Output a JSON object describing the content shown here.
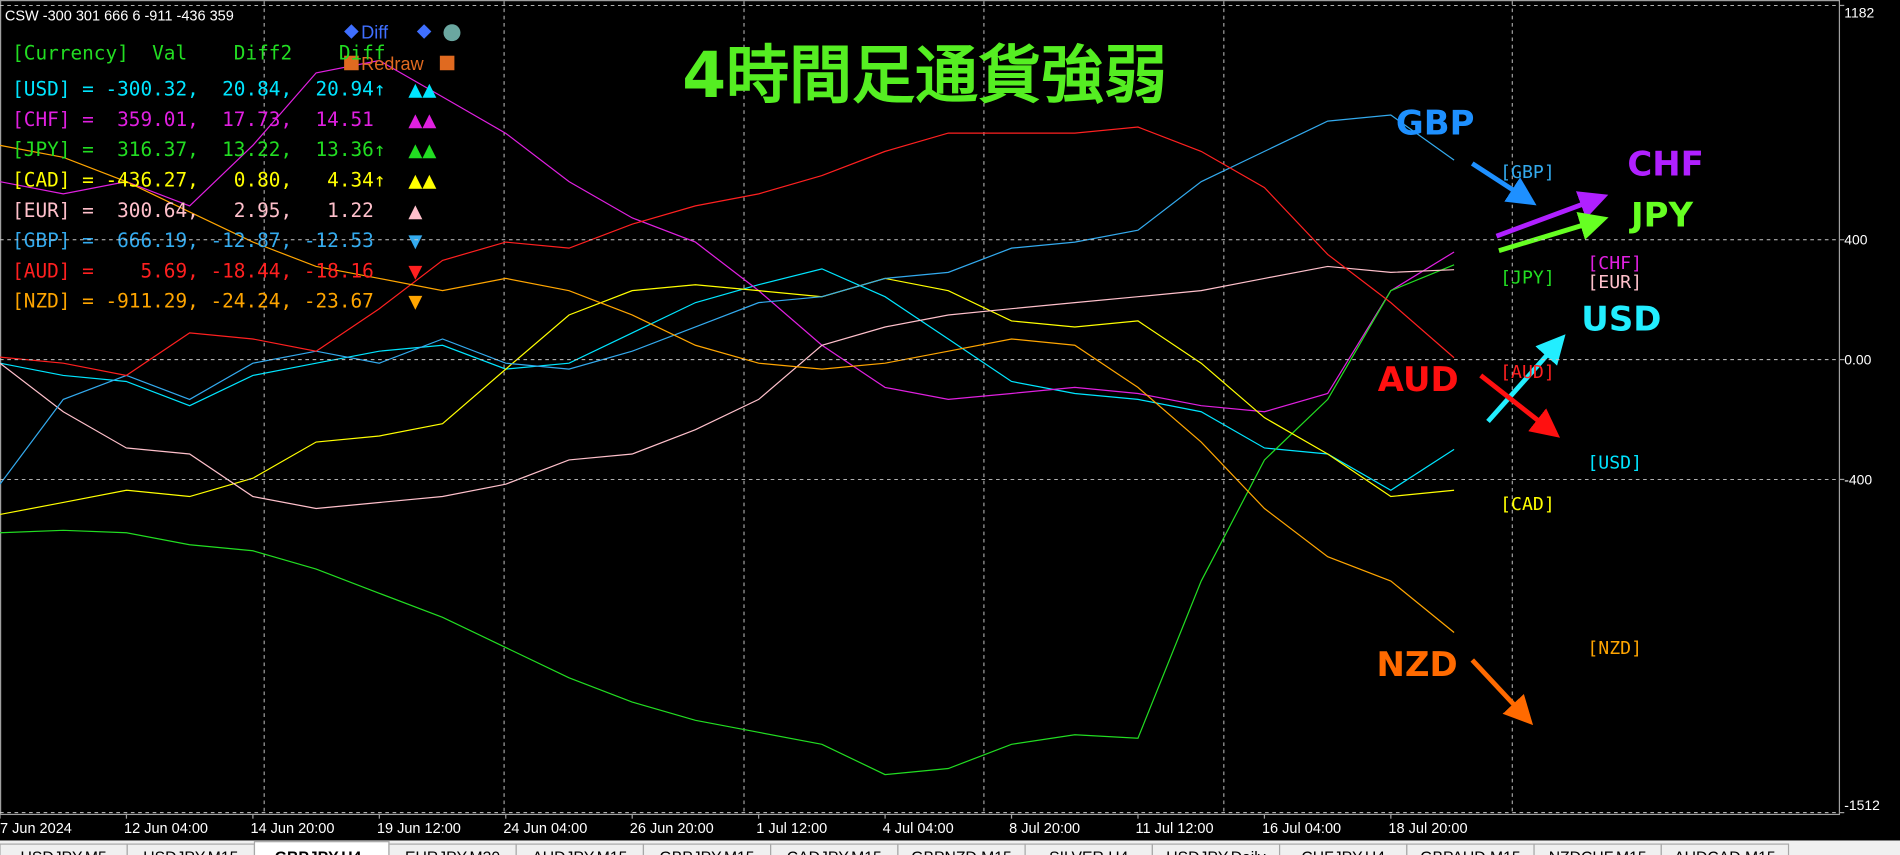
{
  "chart_data": {
    "type": "line",
    "title": "4時間足通貨強弱",
    "categories": [
      "7 Jun 2024",
      null,
      "12 Jun 04:00",
      null,
      "14 Jun 20:00",
      null,
      "19 Jun 12:00",
      null,
      "24 Jun 04:00",
      null,
      "26 Jun 20:00",
      null,
      "1 Jul 12:00",
      null,
      "4 Jul 04:00",
      null,
      "8 Jul 20:00",
      null,
      "11 Jul 12:00",
      null,
      "16 Jul 04:00",
      null,
      "18 Jul 20:00",
      null
    ],
    "series": [
      {
        "name": "USD",
        "color": "#00e5ff",
        "values": [
          -12,
          -53,
          -73,
          -154,
          -53,
          -12,
          28,
          48,
          -32,
          -12,
          89,
          190,
          250,
          303,
          210,
          69,
          -73,
          -113,
          -133,
          -174,
          -295,
          -315,
          -436,
          -300
        ]
      },
      {
        "name": "CHF",
        "color": "#e020e0",
        "values": [
          594,
          553,
          594,
          513,
          715,
          957,
          998,
          877,
          755,
          594,
          473,
          392,
          230,
          48,
          -93,
          -133,
          -113,
          -93,
          -113,
          -154,
          -174,
          -113,
          230,
          359
        ]
      },
      {
        "name": "JPY",
        "color": "#22dd22",
        "values": [
          -578,
          -570,
          -578,
          -618,
          -638,
          -699,
          -780,
          -860,
          -961,
          -1062,
          -1143,
          -1204,
          -1244,
          -1284,
          -1385,
          -1365,
          -1284,
          -1252,
          -1264,
          -739,
          -335,
          -133,
          230,
          316
        ]
      },
      {
        "name": "CAD",
        "color": "#ffff00",
        "values": [
          -517,
          -477,
          -436,
          -457,
          -396,
          -275,
          -255,
          -214,
          -32,
          149,
          230,
          250,
          230,
          210,
          271,
          230,
          129,
          109,
          129,
          -12,
          -194,
          -315,
          -457,
          -436
        ]
      },
      {
        "name": "EUR",
        "color": "#ffc0cb",
        "values": [
          -12,
          -174,
          -295,
          -315,
          -457,
          -497,
          -477,
          -457,
          -416,
          -335,
          -315,
          -234,
          -133,
          48,
          109,
          149,
          170,
          190,
          210,
          230,
          271,
          311,
          291,
          300
        ]
      },
      {
        "name": "GBP",
        "color": "#33aaee",
        "values": [
          -416,
          -133,
          -53,
          -133,
          -12,
          28,
          -12,
          69,
          -12,
          -32,
          28,
          109,
          190,
          210,
          271,
          291,
          372,
          392,
          432,
          594,
          695,
          796,
          816,
          666
        ]
      },
      {
        "name": "AUD",
        "color": "#ff2020",
        "values": [
          8,
          -12,
          -53,
          89,
          69,
          28,
          170,
          331,
          392,
          372,
          452,
          513,
          553,
          614,
          695,
          756,
          756,
          756,
          776,
          695,
          574,
          351,
          190,
          6
        ]
      },
      {
        "name": "NZD",
        "color": "#ffa500",
        "values": [
          715,
          675,
          594,
          493,
          392,
          311,
          271,
          230,
          271,
          230,
          149,
          48,
          -12,
          -32,
          -12,
          28,
          69,
          48,
          -93,
          -275,
          -497,
          -658,
          -739,
          -911
        ]
      }
    ],
    "ylim": [
      -1512,
      1182
    ],
    "yticks": [
      -1512,
      -400,
      {
        "value": 0,
        "label": "0.00"
      },
      400,
      1182
    ],
    "grid": true,
    "annotations": [
      "GBP",
      "CHF",
      "JPY",
      "USD",
      "AUD",
      "NZD"
    ],
    "line_labels": [
      "[GBP]",
      "[JPY]",
      "[CHF]",
      "[EUR]",
      "[AUD]",
      "[USD]",
      "[CAD]",
      "[NZD]"
    ]
  },
  "indicator_panel": {
    "status": "CSW -300 301 666 6 -911 -436 359",
    "buttons": [
      "Diff",
      "Redraw"
    ],
    "header": "[Currency]  Val    Diff2    Diff",
    "rows": [
      {
        "text": "[USD] = -300.32,  20.84,  20.94↑",
        "signal": "▲▲"
      },
      {
        "text": "[CHF] =  359.01,  17.73,  14.51",
        "signal": "▲▲"
      },
      {
        "text": "[JPY] =  316.37,  13.22,  13.36↑",
        "signal": "▲▲"
      },
      {
        "text": "[CAD] = -436.27,   0.80,   4.34↑",
        "signal": "▲▲"
      },
      {
        "text": "[EUR] =  300.64,   2.95,   1.22",
        "signal": "▲"
      },
      {
        "text": "[GBP] =  666.19, -12.87, -12.53",
        "signal": "▼"
      },
      {
        "text": "[AUD] =    5.69, -18.44, -18.16",
        "signal": "▼"
      },
      {
        "text": "[NZD] = -911.29, -24.24, -23.67",
        "signal": "▼"
      }
    ]
  },
  "tabs": [
    "USDJPY,M5",
    "USDJPY,M15",
    "GBPJPY,H4",
    "EURJPY,M30",
    "AUDJPY,M15",
    "GBPJPY,M15",
    "CADJPY,M15",
    "GBPNZD,M15",
    "SILVER,H4",
    "USDJPY,Daily",
    "CHFJPY,H4",
    "GBPAUD,M15",
    "NZDCHF,M15",
    "AUDCAD,M15"
  ]
}
